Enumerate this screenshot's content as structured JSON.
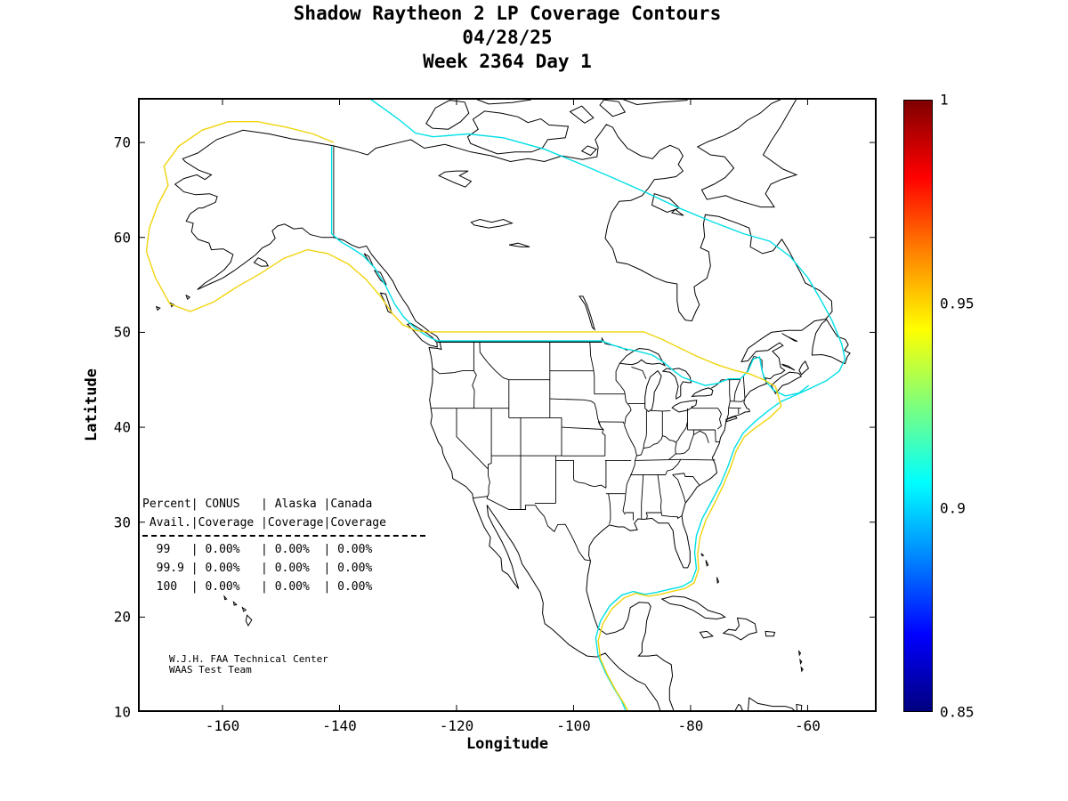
{
  "title": {
    "line1": "Shadow Raytheon 2 LP Coverage Contours",
    "line2": "04/28/25",
    "line3": "Week 2364 Day 1"
  },
  "axes": {
    "xlabel": "Longitude",
    "ylabel": "Latitude",
    "xticks": [
      "-160",
      "-140",
      "-120",
      "-100",
      "-80",
      "-60"
    ],
    "yticks": [
      "70",
      "60",
      "50",
      "40",
      "30",
      "20",
      "10"
    ]
  },
  "colorbar": {
    "ticks": [
      "1",
      "0.95",
      "0.9",
      "0.85"
    ]
  },
  "stats": {
    "lines": [
      "Percent| CONUS   | Alaska |Canada",
      " Avail.|Coverage |Coverage|Coverage",
      "  99   | 0.00%   | 0.00%  | 0.00%",
      "  99.9 | 0.00%   | 0.00%  | 0.00%",
      "  100  | 0.00%   | 0.00%  | 0.00%"
    ]
  },
  "annotation": {
    "line1": "W.J.H. FAA Technical Center",
    "line2": "WAAS Test Team"
  },
  "colors": {
    "contour_cyan": "#00dfe6",
    "contour_yellow": "#f0d40c",
    "map_line": "#000000"
  },
  "chart_data": {
    "type": "contour",
    "title": "Shadow Raytheon 2 LP Coverage Contours",
    "subtitle_lines": [
      "04/28/25",
      "Week 2364 Day 1"
    ],
    "xlabel": "Longitude",
    "ylabel": "Latitude",
    "xlim": [
      -174.45,
      -48.2
    ],
    "ylim": [
      10,
      74.7
    ],
    "xticks": [
      -160,
      -140,
      -120,
      -100,
      -80,
      -60
    ],
    "yticks": [
      70,
      60,
      50,
      40,
      30,
      20,
      10
    ],
    "grid": false,
    "basemap": "North America coastline with US state boundaries",
    "colorbar": {
      "colormap": "jet",
      "range": [
        0.85,
        1
      ],
      "tick_values": [
        1,
        0.95,
        0.9,
        0.85
      ]
    },
    "contours": [
      {
        "level": 0.95,
        "color": "#f0d40c",
        "description": "availability contour around Alaska, CONUS and Gulf of Mexico"
      },
      {
        "level": 0.9,
        "color": "#00dfe6",
        "description": "availability contour across northern Canada, Atlantic offshore and 49N border"
      }
    ],
    "availability_table": {
      "columns": [
        "Percent Avail.",
        "CONUS Coverage",
        "Alaska Coverage",
        "Canada Coverage"
      ],
      "rows": [
        [
          "99",
          "0.00%",
          "0.00%",
          "0.00%"
        ],
        [
          "99.9",
          "0.00%",
          "0.00%",
          "0.00%"
        ],
        [
          "100",
          "0.00%",
          "0.00%",
          "0.00%"
        ]
      ]
    },
    "credit_lines": [
      "W.J.H. FAA Technical Center",
      "WAAS Test Team"
    ]
  }
}
